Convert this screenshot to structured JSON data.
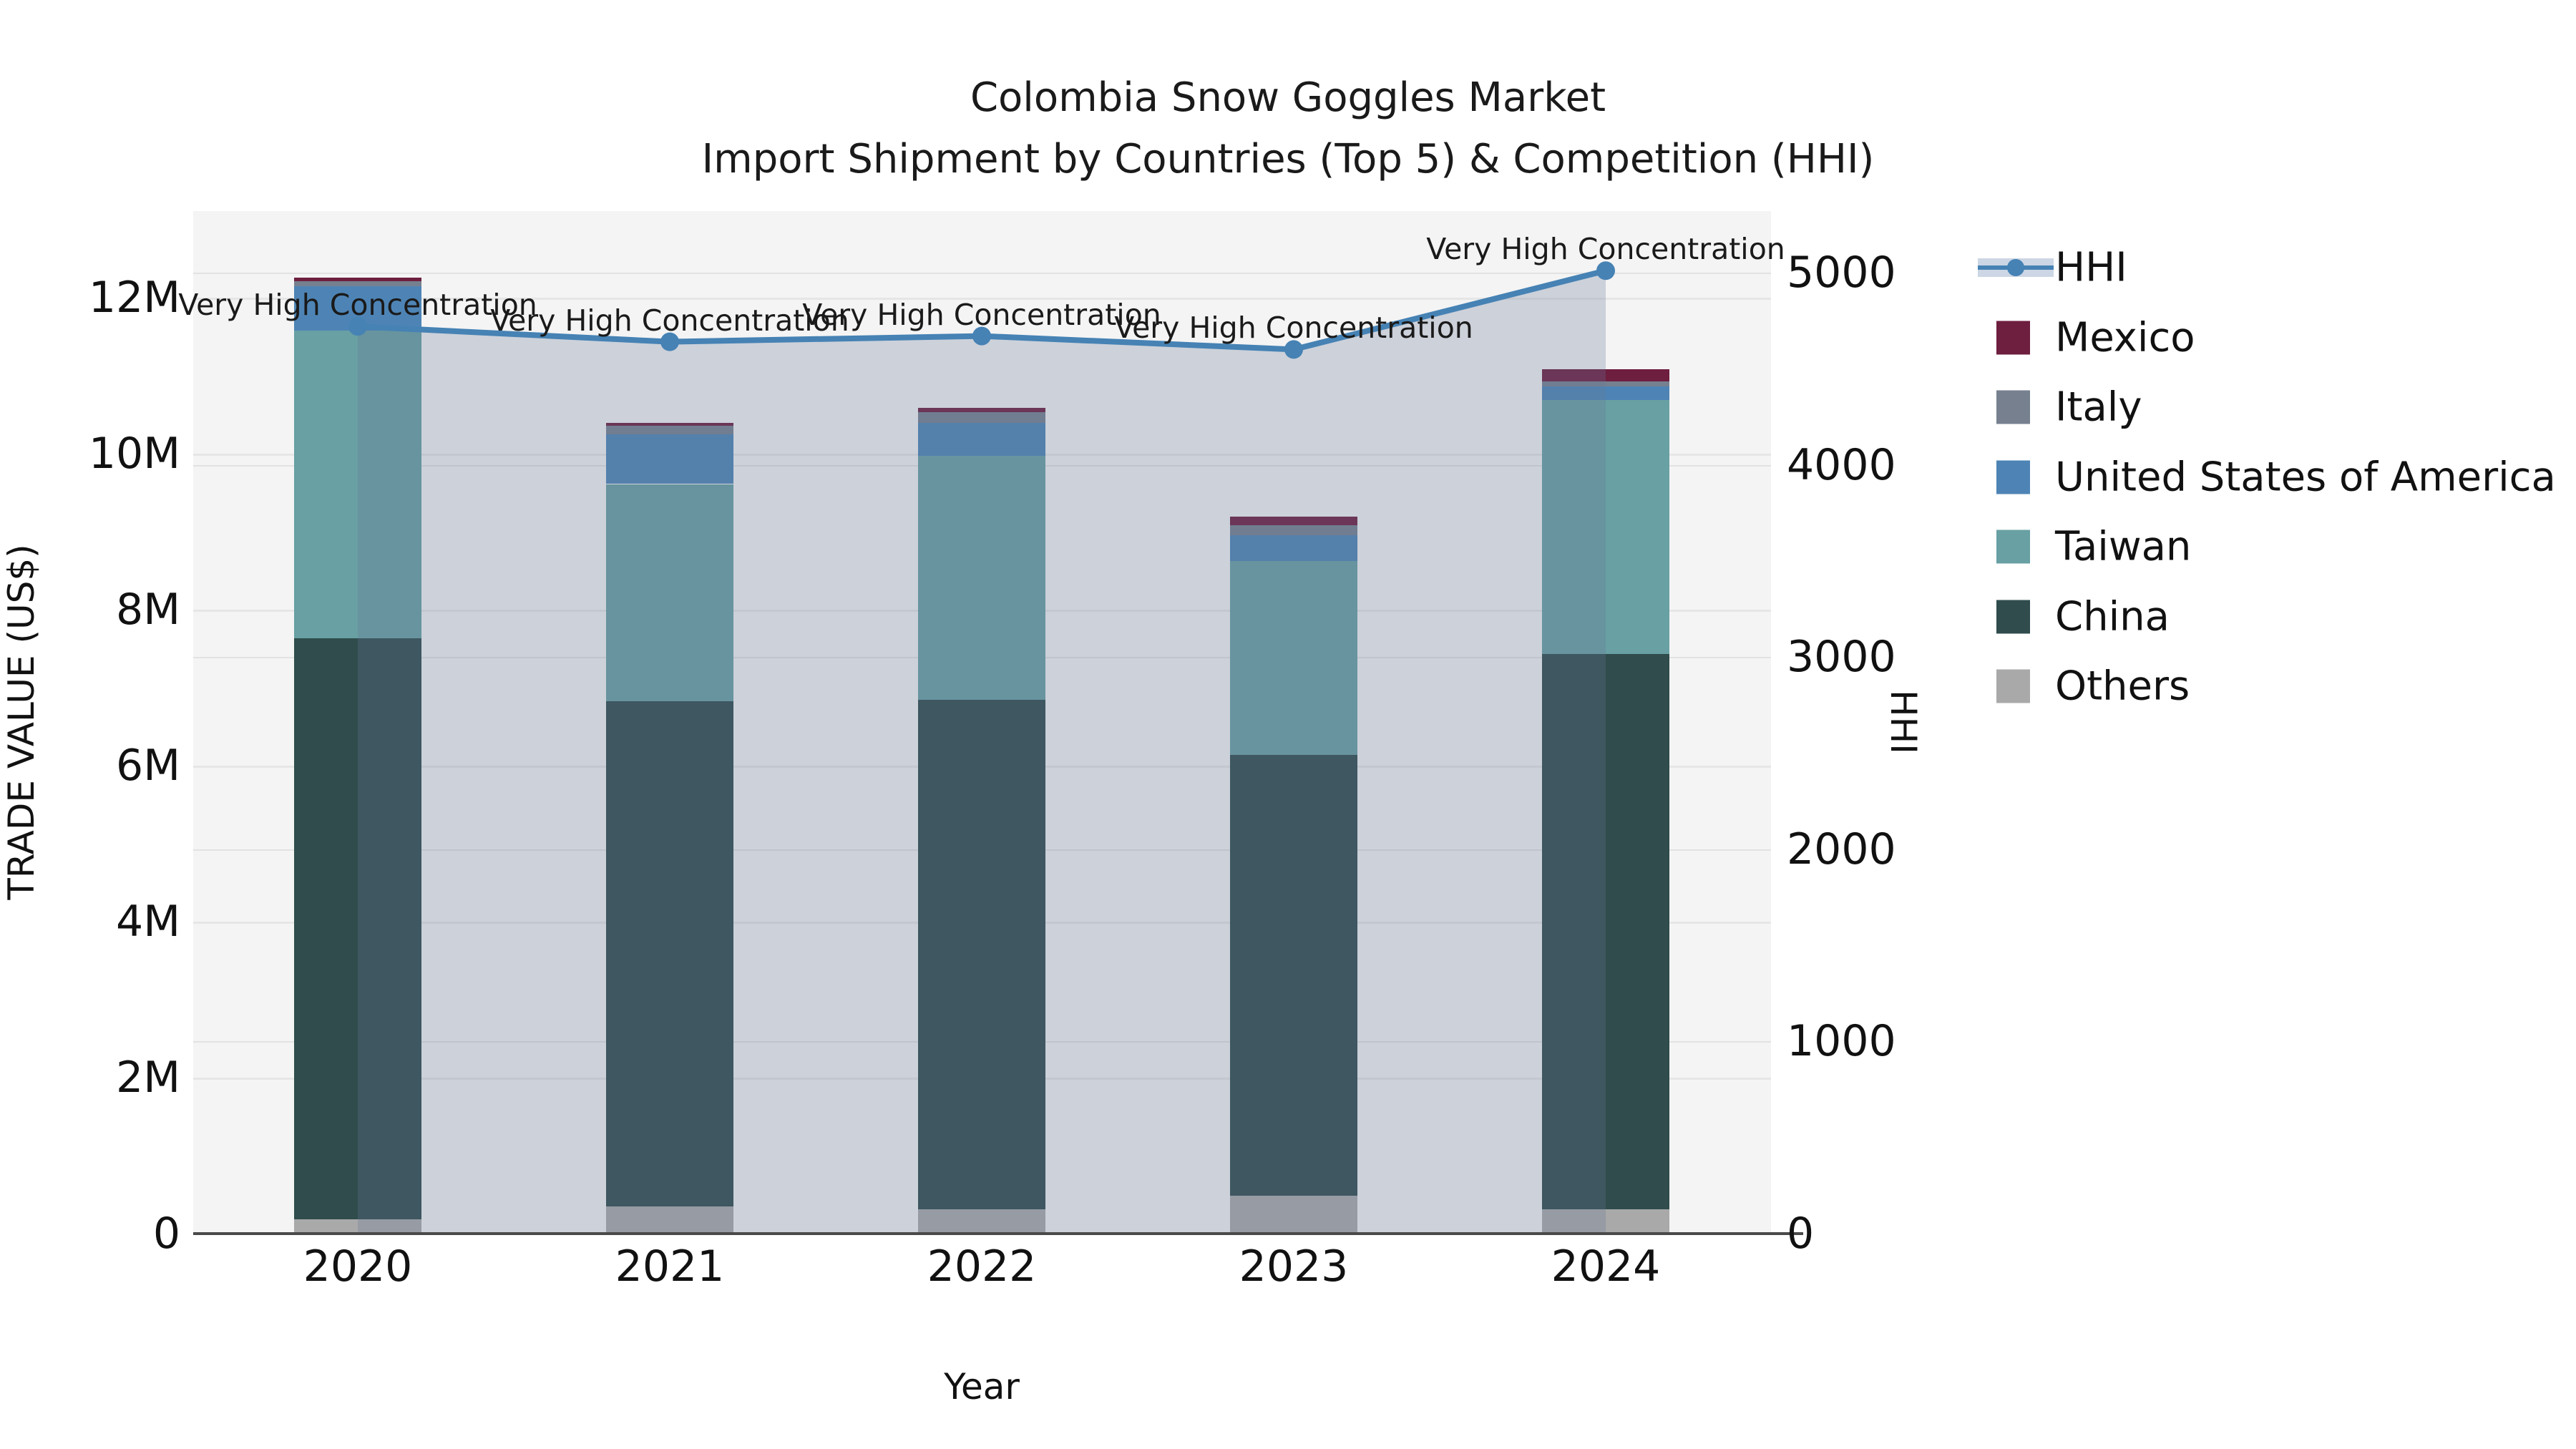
{
  "title": {
    "line1": "Colombia Snow Goggles Market",
    "line2": "Import Shipment by Countries (Top 5) & Competition (HHI)"
  },
  "axes": {
    "left": {
      "label": "TRADE VALUE (US$)",
      "tick_labels": [
        "0",
        "2M",
        "4M",
        "6M",
        "8M",
        "10M",
        "12M"
      ],
      "tick_values_m": [
        0,
        2,
        4,
        6,
        8,
        10,
        12
      ],
      "max_m": 13.11
    },
    "right": {
      "label": "HHI",
      "tick_labels": [
        "0",
        "1000",
        "2000",
        "3000",
        "4000",
        "5000"
      ],
      "tick_values": [
        0,
        1000,
        2000,
        3000,
        4000,
        5000
      ],
      "max": 5320
    },
    "x": {
      "label": "Year"
    }
  },
  "legend": {
    "items": [
      {
        "label": "HHI",
        "type": "line",
        "color": "#4682B4"
      },
      {
        "label": "Mexico",
        "type": "swatch",
        "color": "#6E1E3F"
      },
      {
        "label": "Italy",
        "type": "swatch",
        "color": "#76808F"
      },
      {
        "label": "United States of America",
        "type": "swatch",
        "color": "#4E84B5"
      },
      {
        "label": "Taiwan",
        "type": "swatch",
        "color": "#68A0A3"
      },
      {
        "label": "China",
        "type": "swatch",
        "color": "#304C4C"
      },
      {
        "label": "Others",
        "type": "swatch",
        "color": "#A9A9A9"
      }
    ]
  },
  "chart_data": {
    "type": "bar",
    "subtype": "stacked-bars-with-line-overlay",
    "categories": [
      "2020",
      "2021",
      "2022",
      "2023",
      "2024"
    ],
    "bar_value_unit": "million US$ (left axis, TRADE VALUE)",
    "series": [
      {
        "name": "Others",
        "color": "#A9A9A9",
        "values_m": [
          0.18,
          0.35,
          0.31,
          0.49,
          0.31
        ]
      },
      {
        "name": "China",
        "color": "#304C4C",
        "values_m": [
          7.45,
          6.48,
          6.53,
          5.65,
          7.12
        ]
      },
      {
        "name": "Taiwan",
        "color": "#68A0A3",
        "values_m": [
          3.95,
          2.78,
          3.13,
          2.48,
          3.26
        ]
      },
      {
        "name": "United States of America",
        "color": "#4E84B5",
        "values_m": [
          0.57,
          0.64,
          0.42,
          0.33,
          0.17
        ]
      },
      {
        "name": "Italy",
        "color": "#76808F",
        "values_m": [
          0.06,
          0.11,
          0.14,
          0.13,
          0.07
        ]
      },
      {
        "name": "Mexico",
        "color": "#6E1E3F",
        "values_m": [
          0.05,
          0.03,
          0.06,
          0.11,
          0.15
        ]
      }
    ],
    "totals_m": [
      12.26,
      10.39,
      10.59,
      9.19,
      11.08
    ],
    "line": {
      "name": "HHI",
      "axis": "right",
      "color": "#4682B4",
      "area_fill": "rgba(100,120,150,0.28)",
      "values": [
        4720,
        4640,
        4670,
        4600,
        5010
      ]
    },
    "annotations": [
      "Very High Concentration",
      "Very High Concentration",
      "Very High Concentration",
      "Very High Concentration",
      "Very High Concentration"
    ],
    "ylim_left_m": [
      0,
      13.11
    ],
    "ylim_right": [
      0,
      5320
    ],
    "grid": true,
    "legend_position": "right"
  }
}
